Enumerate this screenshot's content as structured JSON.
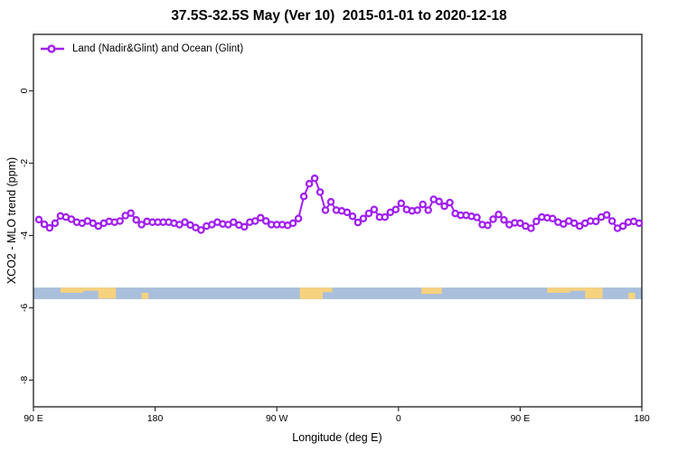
{
  "chart": {
    "title": "37.5S-32.5S May (Ver 10)  2015-01-01 to 2020-12-18",
    "xlabel": "Longitude (deg E)",
    "ylabel": "XCO2 - MLO trend (ppm)",
    "legend": {
      "label": "Land (Nadir&Glint) and Ocean (Glint)"
    }
  },
  "chart_data": {
    "type": "line",
    "title": "37.5S-32.5S May (Ver 10)  2015-01-01 to 2020-12-18",
    "xlabel": "Longitude (deg E)",
    "ylabel": "XCO2 - MLO trend (ppm)",
    "axis_color": "#2e2e2e",
    "grid": false,
    "legend_position": "top-left-inside",
    "x_axis": {
      "range_deg_e": [
        90,
        540
      ],
      "ticks": [
        90,
        180,
        270,
        360,
        450,
        540
      ],
      "tick_labels": [
        "90 E",
        "180",
        "90 W",
        "0",
        "90 E",
        "180"
      ],
      "note": "longitude wraps eastward: 90E-180-90W-0-90E-180"
    },
    "y_axis": {
      "range": [
        -8.75,
        1.55
      ],
      "ticks": [
        0,
        -2,
        -4,
        -6,
        -8
      ],
      "tick_labels": [
        "0",
        "-2",
        "-4",
        "-6",
        "-8"
      ]
    },
    "series": [
      {
        "name": "Land (Nadir&Glint) and Ocean (Glint)",
        "color": "#a020f0",
        "marker": "open-circle",
        "x_start_deg_e": 94,
        "x_step_deg": 4,
        "values": [
          -3.56,
          -3.69,
          -3.79,
          -3.66,
          -3.46,
          -3.49,
          -3.55,
          -3.63,
          -3.66,
          -3.6,
          -3.66,
          -3.74,
          -3.66,
          -3.61,
          -3.63,
          -3.6,
          -3.45,
          -3.38,
          -3.57,
          -3.7,
          -3.61,
          -3.63,
          -3.63,
          -3.63,
          -3.63,
          -3.66,
          -3.7,
          -3.63,
          -3.71,
          -3.78,
          -3.85,
          -3.74,
          -3.7,
          -3.63,
          -3.68,
          -3.7,
          -3.63,
          -3.71,
          -3.76,
          -3.63,
          -3.6,
          -3.51,
          -3.6,
          -3.7,
          -3.7,
          -3.7,
          -3.72,
          -3.66,
          -3.53,
          -2.92,
          -2.57,
          -2.42,
          -2.8,
          -3.3,
          -3.07,
          -3.3,
          -3.32,
          -3.36,
          -3.47,
          -3.64,
          -3.53,
          -3.39,
          -3.28,
          -3.49,
          -3.49,
          -3.36,
          -3.28,
          -3.11,
          -3.28,
          -3.32,
          -3.3,
          -3.14,
          -3.3,
          -3.0,
          -3.06,
          -3.19,
          -3.09,
          -3.39,
          -3.44,
          -3.44,
          -3.47,
          -3.5,
          -3.7,
          -3.72,
          -3.55,
          -3.42,
          -3.57,
          -3.7,
          -3.65,
          -3.66,
          -3.74,
          -3.8,
          -3.61,
          -3.49,
          -3.51,
          -3.53,
          -3.63,
          -3.68,
          -3.6,
          -3.66,
          -3.74,
          -3.66,
          -3.6,
          -3.61,
          -3.49,
          -3.43,
          -3.6,
          -3.8,
          -3.74,
          -3.63,
          -3.61,
          -3.66
        ]
      }
    ],
    "map_strip": {
      "description": "land/ocean strip for latitude band 37.5S-32.5S",
      "ocean_color": "#a9bfdc",
      "land_color": "#f6d27e",
      "y_range_ppm": [
        -5.44,
        -5.76
      ],
      "land_patches": [
        {
          "name": "australia-west",
          "lon": [
            110,
            127
          ],
          "frac": [
            0,
            0.45
          ]
        },
        {
          "name": "australia-bight",
          "lon": [
            127,
            139
          ],
          "frac": [
            0,
            0.28
          ]
        },
        {
          "name": "australia-southeast",
          "lon": [
            138,
            151
          ],
          "frac": [
            0,
            0.95
          ]
        },
        {
          "name": "new-zealand",
          "lon": [
            170,
            175
          ],
          "frac": [
            0.45,
            1
          ]
        },
        {
          "name": "south-america",
          "lon": [
            287,
            304
          ],
          "frac": [
            0,
            1
          ]
        },
        {
          "name": "south-america-east",
          "lon": [
            304,
            311
          ],
          "frac": [
            0,
            0.4
          ]
        },
        {
          "name": "south-africa",
          "lon": [
            377,
            392
          ],
          "frac": [
            0,
            0.55
          ]
        },
        {
          "name": "australia-west-2",
          "lon": [
            470,
            487
          ],
          "frac": [
            0,
            0.45
          ]
        },
        {
          "name": "australia-bight-2",
          "lon": [
            487,
            499
          ],
          "frac": [
            0,
            0.28
          ]
        },
        {
          "name": "australia-southeast-2",
          "lon": [
            498,
            511
          ],
          "frac": [
            0,
            0.95
          ]
        },
        {
          "name": "new-zealand-2",
          "lon": [
            530,
            535
          ],
          "frac": [
            0.45,
            1
          ]
        }
      ]
    }
  }
}
